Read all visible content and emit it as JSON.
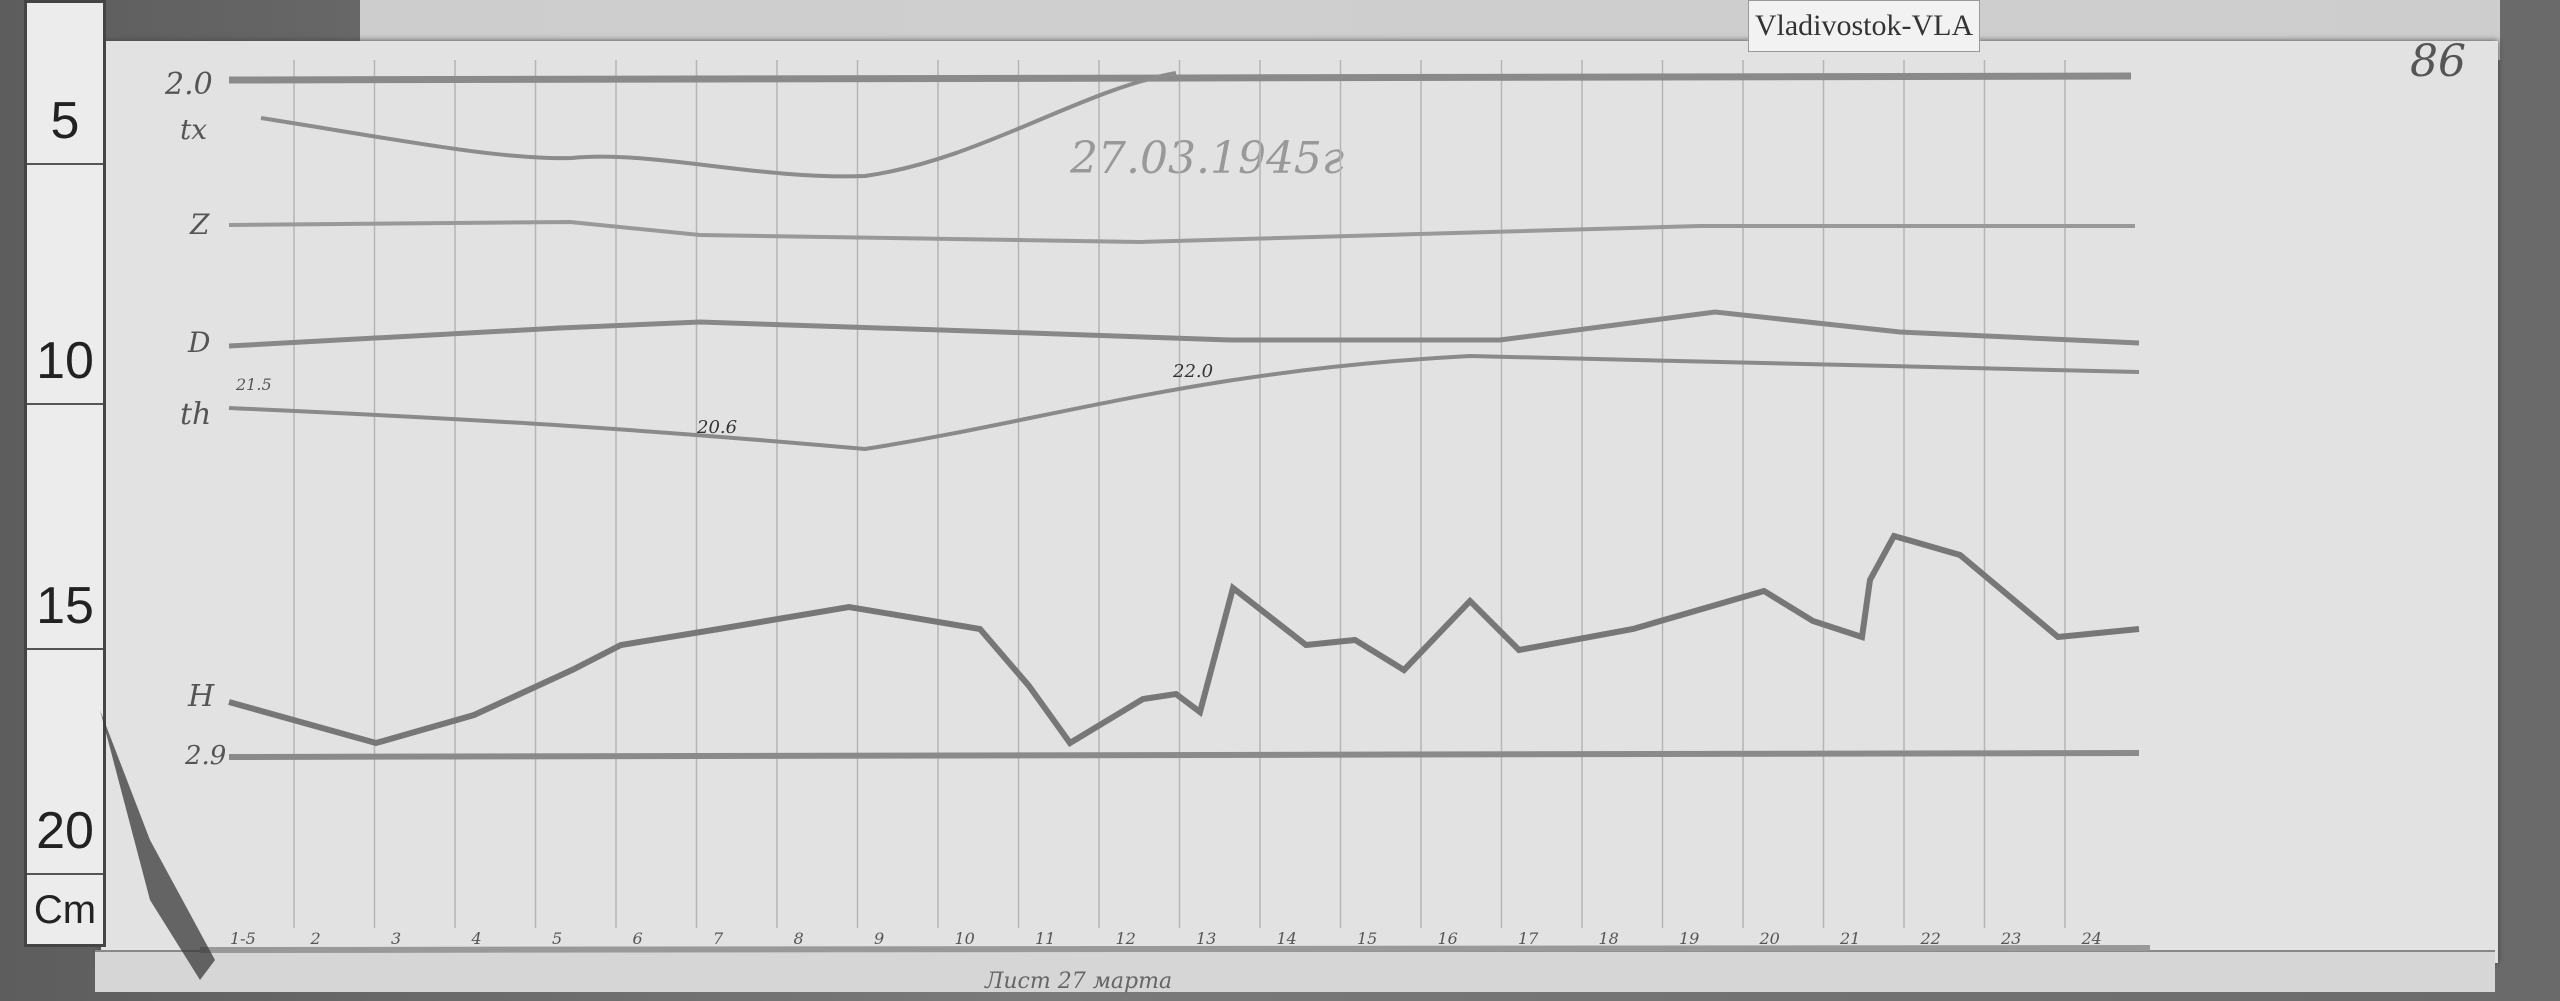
{
  "station_label": "Vladivostok-VLA",
  "sheet_number": "86",
  "date": "27.03.1945г",
  "ruler": {
    "marks": [
      "5",
      "10",
      "15",
      "20"
    ],
    "unit": "Cm"
  },
  "trace_labels": {
    "top": "2.0",
    "tx": "tx",
    "z": "Z",
    "d": "D",
    "th": "th",
    "h": "H",
    "base": "2.9"
  },
  "annotations": {
    "th_start": "21.5",
    "th_min": "20.6",
    "th_max": "22.0"
  },
  "hour_ticks": [
    "1-5",
    "2",
    "3",
    "4",
    "5",
    "6",
    "7",
    "8",
    "9",
    "10",
    "11",
    "12",
    "13",
    "14",
    "15",
    "16",
    "17",
    "18",
    "19",
    "20",
    "21",
    "22",
    "23",
    "24"
  ],
  "footer_note": "Лист 27 марта"
}
